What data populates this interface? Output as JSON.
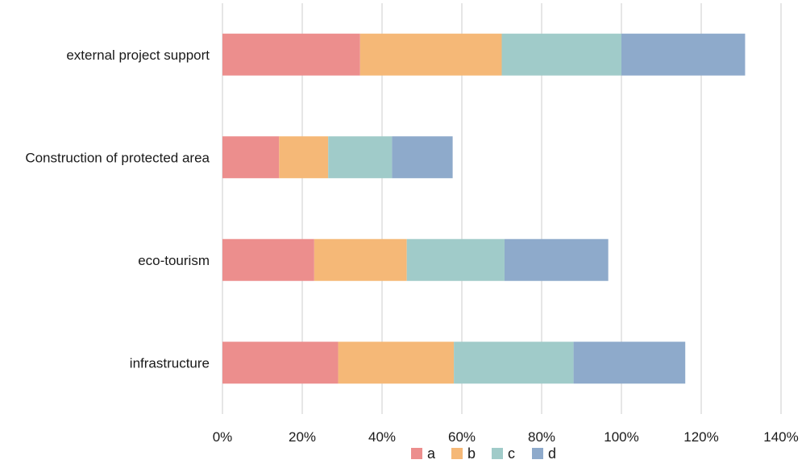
{
  "chart_data": {
    "type": "bar",
    "orientation": "horizontal",
    "stacked": true,
    "title": "",
    "xlabel": "",
    "ylabel": "",
    "categories": [
      "external project support",
      "Construction of protected area",
      "eco-tourism",
      "infrastructure"
    ],
    "series": [
      {
        "name": "a",
        "color": "#ec8e8d",
        "values": [
          34.5,
          14.2,
          23.0,
          29.0
        ]
      },
      {
        "name": "b",
        "color": "#f5b877",
        "values": [
          35.5,
          12.3,
          23.2,
          29.0
        ]
      },
      {
        "name": "c",
        "color": "#a0cbc9",
        "values": [
          30.0,
          16.0,
          24.5,
          30.0
        ]
      },
      {
        "name": "d",
        "color": "#8eaacb",
        "values": [
          31.0,
          15.2,
          26.0,
          28.0
        ]
      }
    ],
    "xlim": [
      0,
      140
    ],
    "xticks": [
      0,
      20,
      40,
      60,
      80,
      100,
      120,
      140
    ],
    "xtick_labels": [
      "0%",
      "20%",
      "40%",
      "60%",
      "80%",
      "100%",
      "120%",
      "140%"
    ],
    "grid": "vertical",
    "legend_position": "bottom"
  }
}
